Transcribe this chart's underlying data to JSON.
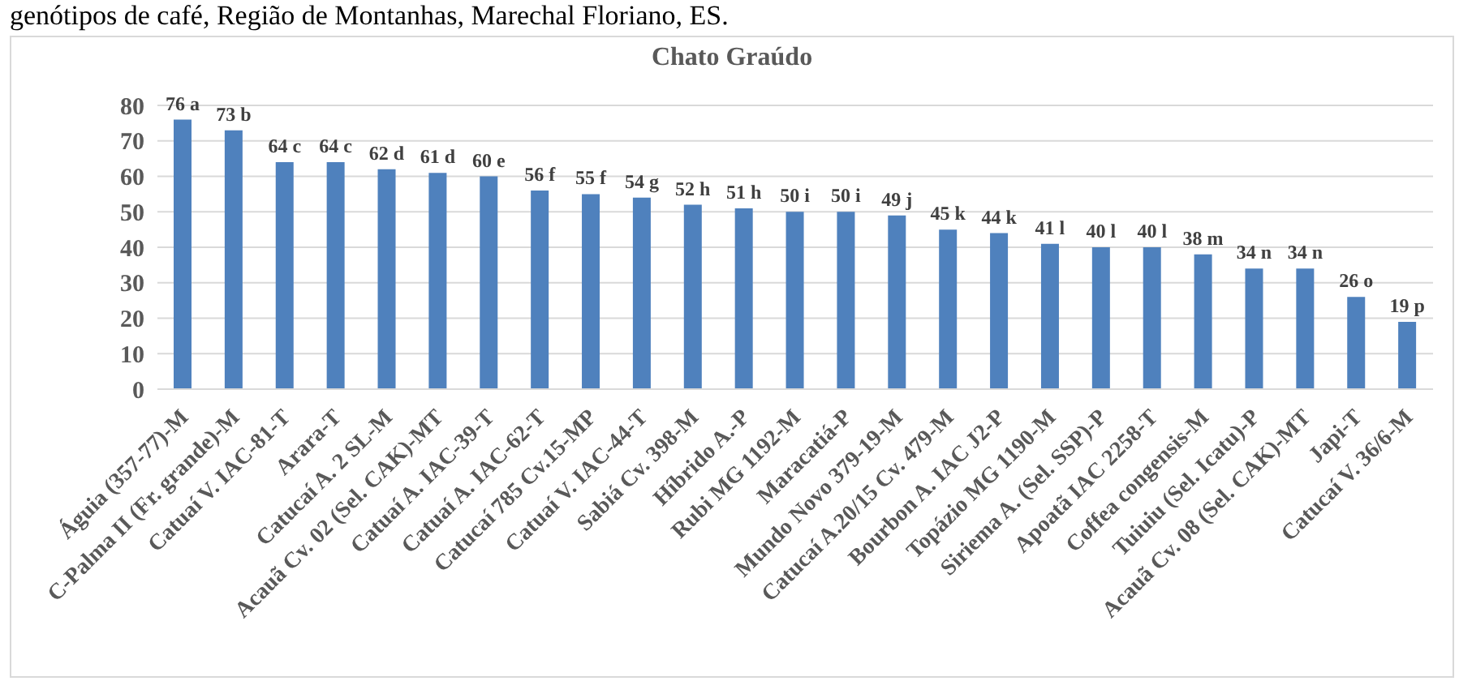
{
  "chart_data": {
    "type": "bar",
    "title": "Chato Graúdo",
    "annotations": [
      "genótipos de café, Região de Montanhas, Marechal Floriano, ES."
    ],
    "categories": [
      "Águia (357-77)-M",
      "C-Palma II (Fr. grande)-M",
      "Catuaí V. IAC-81-T",
      "Arara-T",
      "Catucaí A. 2 SL-M",
      "Acauã Cv. 02 (Sel. CAK)-MT",
      "Catuaí A. IAC-39-T",
      "Catuaí A. IAC-62-T",
      "Catucaí 785 Cv.15-MP",
      "Catuaí V. IAC-44-T",
      "Sabiá Cv. 398-M",
      "Híbrido A.-P",
      "Rubi MG 1192-M",
      "Maracatiá-P",
      "Mundo Novo 379-19-M",
      "Catucaí A.20/15 Cv. 479-M",
      "Bourbon A. IAC J2-P",
      "Topázio MG 1190-M",
      "Siriema A. (Sel. SSP)-P",
      "Apoatã IAC 2258-T",
      "Coffea congensis-M",
      "Tuiuiu (Sel. Icatu)-P",
      "Acauã Cv. 08 (Sel. CAK)-MT",
      "Japi-T",
      "Catucaí V. 36/6-M"
    ],
    "values": [
      76,
      73,
      64,
      64,
      62,
      61,
      60,
      56,
      55,
      54,
      52,
      51,
      50,
      50,
      49,
      45,
      44,
      41,
      40,
      40,
      38,
      34,
      34,
      26,
      19
    ],
    "value_labels": [
      "76 a",
      "73 b",
      "64 c",
      "64 c",
      "62 d",
      "61 d",
      "60 e",
      "56 f",
      "55 f",
      "54 g",
      "52 h",
      "51 h",
      "50 i",
      "50 i",
      "49 j",
      "45 k",
      "44 k",
      "41 l",
      "40 l",
      "40 l",
      "38 m",
      "34 n",
      "34 n",
      "26 o",
      "19 p"
    ],
    "color": "#4f81bd",
    "ylim": [
      0,
      80
    ],
    "yticks": [
      0,
      10,
      20,
      30,
      40,
      50,
      60,
      70,
      80
    ],
    "grid": "y"
  }
}
